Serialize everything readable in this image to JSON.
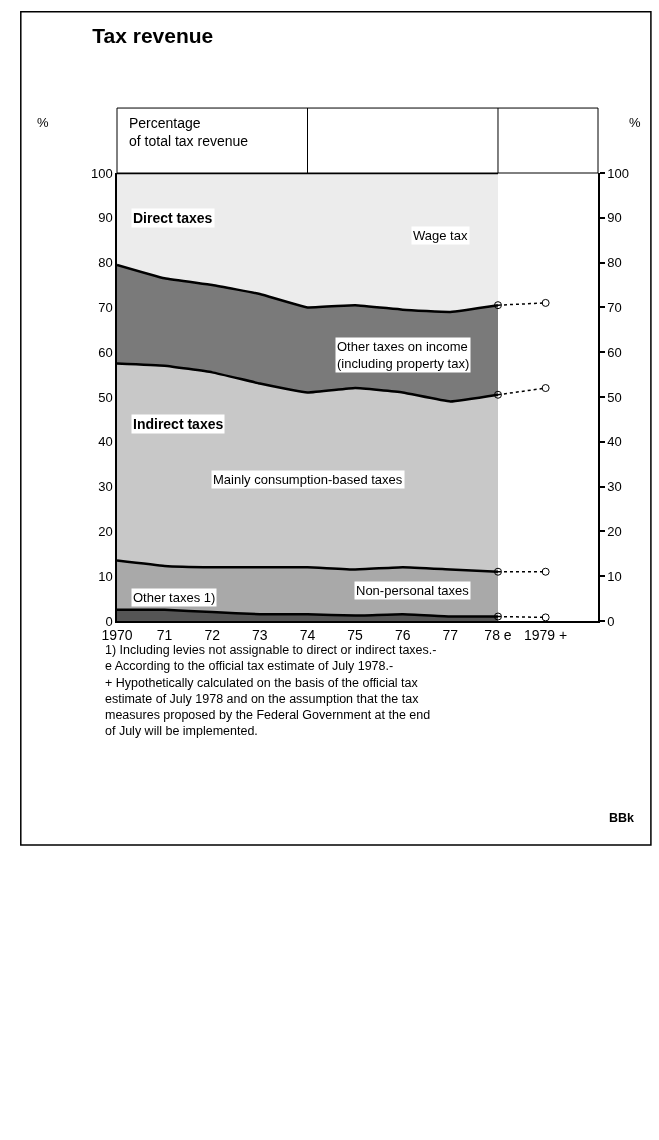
{
  "chart_data": {
    "type": "area",
    "title": "Tax revenue",
    "ylabel": "%",
    "y2label": "%",
    "stacked": true,
    "legend": false,
    "categories": [
      "1970",
      "71",
      "72",
      "73",
      "74",
      "75",
      "76",
      "77",
      "78 e",
      "1979 +"
    ],
    "series": [
      {
        "name": "Other taxes 1)",
        "color": "#555555",
        "values": [
          2.5,
          2.5,
          2.0,
          1.5,
          1.5,
          1.2,
          1.5,
          1.0,
          1.0,
          null
        ]
      },
      {
        "name": "Non-personal taxes",
        "color": "#a9a9a9",
        "values": [
          11.0,
          9.8,
          10.0,
          10.5,
          10.5,
          10.3,
          10.5,
          10.5,
          10.0,
          null
        ]
      },
      {
        "name": "Mainly consumption-based taxes",
        "color": "#c8c8c8",
        "values": [
          44.0,
          44.7,
          43.5,
          41.0,
          39.0,
          40.5,
          39.0,
          37.5,
          39.5,
          null
        ]
      },
      {
        "name": "Other taxes on income\n(including property tax)",
        "color": "#7a7a7a",
        "values": [
          22.0,
          19.5,
          19.5,
          20.0,
          19.0,
          18.5,
          18.5,
          20.0,
          20.0,
          null
        ]
      },
      {
        "name": "Wage tax",
        "color": "#ececec",
        "values": [
          20.5,
          23.5,
          25.0,
          27.0,
          30.0,
          29.5,
          30.5,
          31.0,
          29.5,
          null
        ]
      },
      {
        "type": "line",
        "color": "#000000",
        "marker": "circle",
        "line_style": "dotted",
        "x": [
          "78 e",
          "1979 +"
        ],
        "values": [
          70.5,
          71.0
        ]
      },
      {
        "type": "line",
        "color": "#000000",
        "marker": "circle",
        "line_style": "dotted",
        "x": [
          "78 e",
          "1979 +"
        ],
        "values": [
          50.5,
          52.0
        ]
      },
      {
        "type": "line",
        "color": "#000000",
        "marker": "circle",
        "line_style": "dotted",
        "x": [
          "78 e",
          "1979 +"
        ],
        "values": [
          11.0,
          11.0
        ]
      },
      {
        "type": "line",
        "color": "#000000",
        "marker": "circle",
        "line_style": "dotted",
        "x": [
          "78 e",
          "1979 +"
        ],
        "values": [
          1.0,
          0.8
        ]
      }
    ],
    "ylim": [
      0,
      100
    ],
    "yticks": [
      0,
      10,
      20,
      30,
      40,
      50,
      60,
      70,
      80,
      90,
      100
    ],
    "y2lim": [
      0,
      100
    ],
    "y2ticks": [
      0,
      10,
      20,
      30,
      40,
      50,
      60,
      70,
      80,
      90,
      100
    ],
    "annotations": [
      "Percentage\nof total tax revenue",
      "Direct taxes",
      "Indirect taxes",
      "1) Including levies not assignable to direct or indirect taxes.-\ne According to the official tax estimate of July 1978.-\n+ Hypothetically calculated on the basis of the official tax\nestimate of July 1978 and on the assumption that the tax\nmeasures proposed by the Federal Government at the end\nof July will be implemented.",
      "BBk"
    ]
  }
}
